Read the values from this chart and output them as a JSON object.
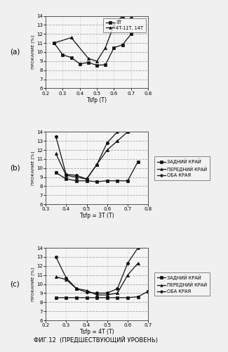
{
  "panel_a": {
    "label": "(a)",
    "xlabel": "Tsfp (T)",
    "ylabel": "ПРОКАНИЕ [%]",
    "xlim": [
      0.2,
      0.8
    ],
    "ylim": [
      6,
      14
    ],
    "yticks": [
      6,
      7,
      8,
      9,
      10,
      11,
      12,
      13,
      14
    ],
    "xticks": [
      0.2,
      0.3,
      0.4,
      0.5,
      0.6,
      0.7,
      0.8
    ],
    "xtick_labels": [
      "0.2",
      "0.3",
      "0.4",
      "0.5",
      "0.6",
      "0.7",
      "0.8"
    ],
    "series": [
      {
        "label": "3T",
        "x": [
          0.25,
          0.3,
          0.35,
          0.4,
          0.45,
          0.5,
          0.55,
          0.6,
          0.65,
          0.7
        ],
        "y": [
          11.0,
          9.7,
          9.4,
          8.7,
          8.85,
          8.55,
          8.6,
          10.5,
          10.8,
          12.0
        ],
        "marker": "s",
        "linestyle": "-"
      },
      {
        "label": "4T-11T, 14T",
        "x": [
          0.25,
          0.35,
          0.45,
          0.5,
          0.55,
          0.6,
          0.65,
          0.7
        ],
        "y": [
          11.0,
          11.6,
          9.3,
          9.0,
          10.5,
          13.0,
          14.0,
          14.0
        ],
        "marker": "^",
        "linestyle": "-"
      }
    ]
  },
  "panel_b": {
    "label": "(b)",
    "xlabel": "Tsfp = 3T (T)",
    "ylabel": "ПРОКАНИЕ [%]",
    "xlim": [
      0.3,
      0.8
    ],
    "ylim": [
      6,
      14
    ],
    "yticks": [
      6,
      7,
      8,
      9,
      10,
      11,
      12,
      13,
      14
    ],
    "xticks": [
      0.3,
      0.4,
      0.5,
      0.6,
      0.7,
      0.8
    ],
    "xtick_labels": [
      "0.3",
      "0.4",
      "0.5",
      "0.6",
      "0.7",
      "0.8"
    ],
    "series": [
      {
        "label": "ЗАДНИЙ КРАЙ",
        "x": [
          0.35,
          0.4,
          0.45,
          0.5,
          0.55,
          0.6,
          0.65,
          0.7,
          0.75
        ],
        "y": [
          9.5,
          8.8,
          8.6,
          8.6,
          8.5,
          8.6,
          8.6,
          8.6,
          10.7
        ],
        "marker": "s",
        "linestyle": "-"
      },
      {
        "label": "ПЕРЕДНИЙ КРАЙ",
        "x": [
          0.35,
          0.4,
          0.45,
          0.5,
          0.55,
          0.6,
          0.65,
          0.7
        ],
        "y": [
          11.6,
          9.2,
          9.0,
          8.8,
          10.4,
          12.0,
          13.0,
          14.0
        ],
        "marker": "^",
        "linestyle": "-"
      },
      {
        "label": "ОБА КРАЯ",
        "x": [
          0.35,
          0.4,
          0.45,
          0.5,
          0.55,
          0.6,
          0.65,
          0.7
        ],
        "y": [
          13.5,
          9.3,
          9.2,
          8.8,
          10.4,
          12.8,
          14.0,
          14.0
        ],
        "marker": "o",
        "linestyle": "-"
      }
    ]
  },
  "panel_c": {
    "label": "(c)",
    "xlabel": "Tsfp = 4T (T)",
    "ylabel": "ПРОКАНИЕ [%]",
    "xlim": [
      0.2,
      0.7
    ],
    "ylim": [
      6,
      14
    ],
    "yticks": [
      6,
      7,
      8,
      9,
      10,
      11,
      12,
      13,
      14
    ],
    "xticks": [
      0.2,
      0.3,
      0.4,
      0.5,
      0.6,
      0.7
    ],
    "xtick_labels": [
      "0.2",
      "0.3",
      "0.4",
      "0.5",
      "0.6",
      "0.7"
    ],
    "series": [
      {
        "label": "ЗАДНИЙ КРАЙ",
        "x": [
          0.25,
          0.3,
          0.35,
          0.4,
          0.45,
          0.5,
          0.55,
          0.6,
          0.65,
          0.7
        ],
        "y": [
          8.5,
          8.5,
          8.5,
          8.5,
          8.5,
          8.5,
          8.5,
          8.5,
          8.6,
          9.2
        ],
        "marker": "s",
        "linestyle": "-"
      },
      {
        "label": "ПЕРЕДНИЙ КРАЙ",
        "x": [
          0.25,
          0.3,
          0.35,
          0.4,
          0.45,
          0.5,
          0.55,
          0.6,
          0.65
        ],
        "y": [
          10.8,
          10.5,
          9.5,
          9.3,
          8.8,
          8.8,
          9.0,
          11.0,
          12.3
        ],
        "marker": "^",
        "linestyle": "-"
      },
      {
        "label": "ОБА КРАЯ",
        "x": [
          0.25,
          0.3,
          0.35,
          0.4,
          0.45,
          0.5,
          0.55,
          0.6,
          0.65
        ],
        "y": [
          13.0,
          10.7,
          9.5,
          9.1,
          9.0,
          9.0,
          9.5,
          12.3,
          14.0
        ],
        "marker": "o",
        "linestyle": "-"
      }
    ]
  },
  "figure_caption_line1": "ФИГ.12  (ПРЕДШЕСТВУЮЩИЙ УРОВЕНЬ)",
  "bg_color": "#f0f0f0",
  "plot_bg": "#f5f5f5",
  "line_color": "#111111",
  "grid_color": "#999999"
}
